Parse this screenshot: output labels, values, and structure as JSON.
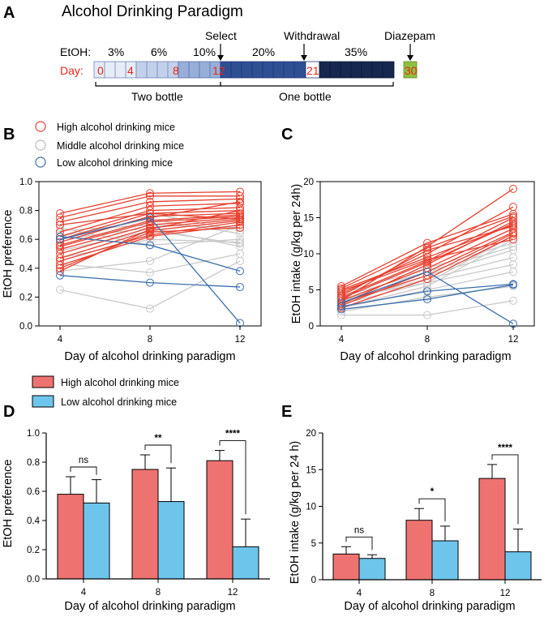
{
  "panels": {
    "A": "A",
    "B": "B",
    "C": "C",
    "D": "D",
    "E": "E"
  },
  "paradigm": {
    "title": "Alcohol Drinking Paradigm",
    "etoh_label": "EtOH:",
    "day_label": "Day:",
    "concentrations": [
      "3%",
      "6%",
      "10%",
      "20%",
      "35%"
    ],
    "day_ticks": [
      "0",
      "4",
      "8",
      "12",
      "21",
      "30"
    ],
    "events": [
      "Select",
      "Withdrawal",
      "Diazepam"
    ],
    "phases": [
      "Two bottle",
      "One bottle"
    ],
    "colors": [
      "#dfe6f3",
      "#bccbe6",
      "#8fa6d2",
      "#2f4f93",
      "#152752",
      "#8fbf3f"
    ]
  },
  "legend_bc": {
    "high": "High alcohol drinking mice",
    "middle": "Middle alcohol drinking mice",
    "low": "Low alcohol drinking mice",
    "high_color": "#e8402f",
    "middle_color": "#c8c8c8",
    "low_color": "#3c6fae"
  },
  "legend_de": {
    "high": "High alcohol drinking mice",
    "low": "Low alcohol drinking mice",
    "high_color": "#ee7370",
    "low_color": "#6ec5ec"
  },
  "chart_data": [
    {
      "id": "B",
      "type": "line",
      "xlabel": "Day of alcohol drinking paradigm",
      "ylabel": "EtOH preference",
      "x": [
        4,
        8,
        12
      ],
      "x_ticks": [
        "4",
        "8",
        "12"
      ],
      "ylim": [
        0,
        1.0
      ],
      "y_ticks": [
        "0.0",
        "0.2",
        "0.4",
        "0.6",
        "0.8",
        "1.0"
      ],
      "series": [
        {
          "group": "middle",
          "values": [
            0.25,
            0.12,
            0.45
          ]
        },
        {
          "group": "middle",
          "values": [
            0.43,
            0.37,
            0.5
          ]
        },
        {
          "group": "middle",
          "values": [
            0.47,
            0.6,
            0.58
          ]
        },
        {
          "group": "middle",
          "values": [
            0.52,
            0.66,
            0.57
          ]
        },
        {
          "group": "middle",
          "values": [
            0.6,
            0.68,
            0.55
          ]
        },
        {
          "group": "middle",
          "values": [
            0.66,
            0.7,
            0.68
          ]
        },
        {
          "group": "middle",
          "values": [
            0.68,
            0.56,
            0.6
          ]
        },
        {
          "group": "middle",
          "values": [
            0.7,
            0.78,
            0.66
          ]
        },
        {
          "group": "middle",
          "values": [
            0.38,
            0.45,
            0.7
          ]
        },
        {
          "group": "middle",
          "values": [
            0.62,
            0.74,
            0.64
          ]
        },
        {
          "group": "high",
          "values": [
            0.78,
            0.92,
            0.93
          ]
        },
        {
          "group": "high",
          "values": [
            0.75,
            0.9,
            0.9
          ]
        },
        {
          "group": "high",
          "values": [
            0.72,
            0.86,
            0.88
          ]
        },
        {
          "group": "high",
          "values": [
            0.65,
            0.83,
            0.85
          ]
        },
        {
          "group": "high",
          "values": [
            0.62,
            0.8,
            0.82
          ]
        },
        {
          "group": "high",
          "values": [
            0.6,
            0.78,
            0.8
          ]
        },
        {
          "group": "high",
          "values": [
            0.58,
            0.76,
            0.78
          ]
        },
        {
          "group": "high",
          "values": [
            0.56,
            0.73,
            0.77
          ]
        },
        {
          "group": "high",
          "values": [
            0.55,
            0.72,
            0.76
          ]
        },
        {
          "group": "high",
          "values": [
            0.53,
            0.7,
            0.75
          ]
        },
        {
          "group": "high",
          "values": [
            0.5,
            0.68,
            0.74
          ]
        },
        {
          "group": "high",
          "values": [
            0.47,
            0.66,
            0.73
          ]
        },
        {
          "group": "high",
          "values": [
            0.45,
            0.63,
            0.72
          ]
        },
        {
          "group": "high",
          "values": [
            0.42,
            0.62,
            0.7
          ]
        },
        {
          "group": "high",
          "values": [
            0.4,
            0.65,
            0.68
          ]
        },
        {
          "group": "high",
          "values": [
            0.38,
            0.67,
            0.8
          ]
        },
        {
          "group": "high",
          "values": [
            0.6,
            0.75,
            0.86
          ]
        },
        {
          "group": "high",
          "values": [
            0.7,
            0.78,
            0.74
          ]
        },
        {
          "group": "low",
          "values": [
            0.35,
            0.3,
            0.27
          ]
        },
        {
          "group": "low",
          "values": [
            0.62,
            0.56,
            0.38
          ]
        },
        {
          "group": "low",
          "values": [
            0.6,
            0.75,
            0.02
          ]
        }
      ]
    },
    {
      "id": "C",
      "type": "line",
      "xlabel": "Day of alcohol drinking paradigm",
      "ylabel": "EtOH intake (g/kg per 24h)",
      "x": [
        4,
        8,
        12
      ],
      "x_ticks": [
        "4",
        "8",
        "12"
      ],
      "ylim": [
        0,
        20
      ],
      "y_ticks": [
        "0",
        "5",
        "10",
        "15",
        "20"
      ],
      "series": [
        {
          "group": "middle",
          "values": [
            1.5,
            1.5,
            3.5
          ]
        },
        {
          "group": "middle",
          "values": [
            2.0,
            4.0,
            5.5
          ]
        },
        {
          "group": "middle",
          "values": [
            2.5,
            5.0,
            7.5
          ]
        },
        {
          "group": "middle",
          "values": [
            3.0,
            6.0,
            8.5
          ]
        },
        {
          "group": "middle",
          "values": [
            3.5,
            6.5,
            9.5
          ]
        },
        {
          "group": "middle",
          "values": [
            3.0,
            7.0,
            10.5
          ]
        },
        {
          "group": "middle",
          "values": [
            4.0,
            7.5,
            11.0
          ]
        },
        {
          "group": "middle",
          "values": [
            4.5,
            8.0,
            11.5
          ]
        },
        {
          "group": "middle",
          "values": [
            2.5,
            5.5,
            12.0
          ]
        },
        {
          "group": "middle",
          "values": [
            3.8,
            6.0,
            12.5
          ]
        },
        {
          "group": "high",
          "values": [
            3.5,
            11.0,
            19.0
          ]
        },
        {
          "group": "high",
          "values": [
            4.5,
            10.0,
            16.5
          ]
        },
        {
          "group": "high",
          "values": [
            5.5,
            11.5,
            15.5
          ]
        },
        {
          "group": "high",
          "values": [
            4.0,
            9.0,
            15.0
          ]
        },
        {
          "group": "high",
          "values": [
            3.0,
            8.5,
            14.5
          ]
        },
        {
          "group": "high",
          "values": [
            5.0,
            9.5,
            14.0
          ]
        },
        {
          "group": "high",
          "values": [
            3.5,
            8.0,
            13.5
          ]
        },
        {
          "group": "high",
          "values": [
            2.8,
            7.5,
            13.0
          ]
        },
        {
          "group": "high",
          "values": [
            4.2,
            10.5,
            13.8
          ]
        },
        {
          "group": "high",
          "values": [
            3.2,
            7.0,
            12.8
          ]
        },
        {
          "group": "high",
          "values": [
            2.5,
            6.5,
            12.5
          ]
        },
        {
          "group": "high",
          "values": [
            4.8,
            9.2,
            12.0
          ]
        },
        {
          "group": "high",
          "values": [
            3.8,
            8.8,
            14.2
          ]
        },
        {
          "group": "high",
          "values": [
            5.2,
            10.8,
            15.2
          ]
        },
        {
          "group": "low",
          "values": [
            2.3,
            3.7,
            5.7
          ]
        },
        {
          "group": "low",
          "values": [
            2.7,
            4.8,
            5.8
          ]
        },
        {
          "group": "low",
          "values": [
            3.2,
            7.5,
            0.3
          ]
        }
      ]
    },
    {
      "id": "D",
      "type": "bar",
      "xlabel": "Day of alcohol drinking paradigm",
      "ylabel": "EtOH preference",
      "categories": [
        "4",
        "8",
        "12"
      ],
      "ylim": [
        0,
        1.0
      ],
      "y_ticks": [
        "0.0",
        "0.2",
        "0.4",
        "0.6",
        "0.8",
        "1.0"
      ],
      "series": [
        {
          "name": "High alcohol drinking mice",
          "values": [
            0.58,
            0.75,
            0.81
          ],
          "errors": [
            0.12,
            0.1,
            0.07
          ]
        },
        {
          "name": "Low alcohol drinking mice",
          "values": [
            0.52,
            0.53,
            0.22
          ],
          "errors": [
            0.16,
            0.23,
            0.19
          ]
        }
      ],
      "significance": [
        "ns",
        "**",
        "****"
      ]
    },
    {
      "id": "E",
      "type": "bar",
      "xlabel": "Day of alcohol drinking paradigm",
      "ylabel": "EtOH intake (g/kg per 24 h)",
      "categories": [
        "4",
        "8",
        "12"
      ],
      "ylim": [
        0,
        20
      ],
      "y_ticks": [
        "0",
        "5",
        "10",
        "15",
        "20"
      ],
      "series": [
        {
          "name": "High alcohol drinking mice",
          "values": [
            3.5,
            8.1,
            13.8
          ],
          "errors": [
            1.0,
            1.6,
            1.9
          ]
        },
        {
          "name": "Low alcohol drinking mice",
          "values": [
            2.9,
            5.3,
            3.8
          ],
          "errors": [
            0.5,
            2.0,
            3.1
          ]
        }
      ],
      "significance": [
        "ns",
        "*",
        "****"
      ]
    }
  ]
}
